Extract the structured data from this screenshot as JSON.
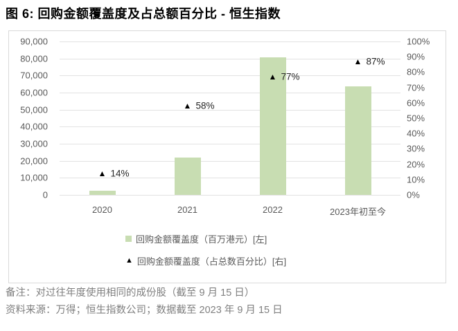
{
  "title": "图 6: 回购金额覆盖度及占总额百分比 - 恒生指数",
  "chart_data": {
    "type": "bar",
    "subtype": "combo bar + triangle scatter, dual axis",
    "categories": [
      "2020",
      "2021",
      "2022",
      "2023年初至今"
    ],
    "series": [
      {
        "name": "回购金额覆盖度（百万港元）[左]",
        "chart_type": "bar",
        "axis": "left",
        "values": [
          2400,
          22000,
          80700,
          63800
        ],
        "color": "#c8ddb2"
      },
      {
        "name": "回购金额覆盖度（占总数百分比）[右]",
        "chart_type": "scatter",
        "marker": "triangle-up",
        "axis": "right",
        "values": [
          14,
          58,
          77,
          87
        ],
        "point_labels": [
          "14%",
          "58%",
          "77%",
          "87%"
        ],
        "color": "#000000"
      }
    ],
    "left_axis": {
      "min": 0,
      "max": 90000,
      "step": 10000,
      "tick_labels_top_to_bottom": [
        "90,000",
        "80,000",
        "70,000",
        "60,000",
        "50,000",
        "40,000",
        "30,000",
        "20,000",
        "10,000",
        "0"
      ]
    },
    "right_axis": {
      "min": 0,
      "max": 100,
      "step": 10,
      "tick_labels_top_to_bottom": [
        "100%",
        "90%",
        "80%",
        "70%",
        "60%",
        "50%",
        "40%",
        "30%",
        "20%",
        "10%",
        "0%"
      ]
    },
    "grid": true,
    "legend_position": "bottom-center"
  },
  "legend": {
    "bar_series_label": "回购金额覆盖度（百万港元）[左]",
    "scatter_series_label": "回购金额覆盖度（占总数百分比）[右]"
  },
  "footnotes": {
    "note": "备注：对过往年度使用相同的成份股（截至 9 月 15 日）",
    "source": "资料来源：万得；恒生指数公司；数据截至 2023 年 9 月 15 日"
  },
  "colors": {
    "bar_fill": "#c8ddb2",
    "marker": "#000000",
    "gridline": "#e2e2e2",
    "frame_border": "#d9d9d9",
    "axis_text": "#595959",
    "data_label_text": "#262626",
    "footnote_text": "#7f7f7f",
    "title_text": "#000000"
  }
}
